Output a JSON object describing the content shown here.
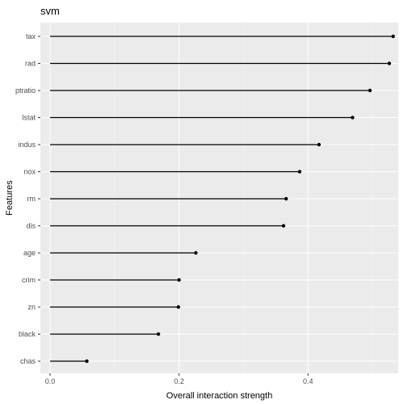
{
  "chart_data": {
    "type": "scatter",
    "style": "lollipop",
    "title": "svm",
    "xlabel": "Overall interaction strength",
    "ylabel": "Features",
    "xlim": [
      -0.015,
      0.54
    ],
    "x_ticks": [
      0.0,
      0.2,
      0.4
    ],
    "x_tick_labels": [
      "0.0",
      "0.2",
      "0.4"
    ],
    "grid": true,
    "legend": "none",
    "categories": [
      "tax",
      "rad",
      "ptratio",
      "lstat",
      "indus",
      "nox",
      "rm",
      "dis",
      "age",
      "crim",
      "zn",
      "black",
      "chas"
    ],
    "values": [
      0.532,
      0.526,
      0.496,
      0.469,
      0.417,
      0.387,
      0.366,
      0.362,
      0.226,
      0.2,
      0.199,
      0.168,
      0.057
    ],
    "colors": {
      "panel_background": "#ebebeb",
      "point": "#000000",
      "segment": "#000000"
    }
  }
}
